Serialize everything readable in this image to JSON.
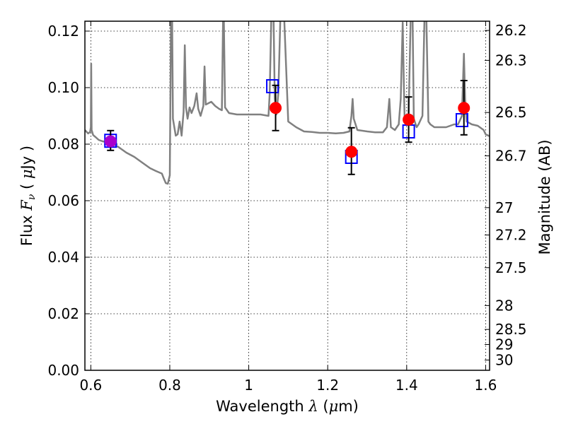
{
  "chart_data": {
    "type": "scatter",
    "x_axis": {
      "label_prefix": "Wavelength  ",
      "label_symbol": "λ",
      "label_unit": " (",
      "label_unit_symbol": "μ",
      "label_unit_end": "m)",
      "range": [
        0.585,
        1.61
      ],
      "ticks": [
        0.6,
        0.8,
        1.0,
        1.2,
        1.4,
        1.6
      ],
      "tick_labels": [
        "0.6",
        "0.8",
        "1",
        "1.2",
        "1.4",
        "1.6"
      ]
    },
    "y_axis": {
      "label_prefix": "Flux  ",
      "label_symbol": "F",
      "label_sub": "ν",
      "label_unit": "  ( ",
      "label_unit_symbol": "μ",
      "label_unit_end": "Jy )",
      "range": [
        0.0,
        0.1235
      ],
      "ticks": [
        0.0,
        0.02,
        0.04,
        0.06,
        0.08,
        0.1,
        0.12
      ],
      "tick_labels": [
        "0.00",
        "0.02",
        "0.04",
        "0.06",
        "0.08",
        "0.10",
        "0.12"
      ]
    },
    "right_axis": {
      "label": "Magnitude (AB)",
      "scale": "AB magnitude (mag = 23.9 - 2.5 log10 flux[μJy])",
      "ticks": [
        26.2,
        26.3,
        26.5,
        26.7,
        27,
        27.2,
        27.5,
        28,
        28.5,
        29,
        30
      ],
      "tick_labels": [
        "26.2",
        "26.3",
        "26.5",
        "26.7",
        "27",
        "27.2",
        "27.5",
        "28",
        "28.5",
        "29",
        "30"
      ]
    },
    "grid": true,
    "model_spectrum": {
      "color": "#808080",
      "points": [
        [
          0.585,
          0.085
        ],
        [
          0.593,
          0.0838
        ],
        [
          0.598,
          0.0843
        ],
        [
          0.6,
          0.086
        ],
        [
          0.601,
          0.1085
        ],
        [
          0.602,
          0.085
        ],
        [
          0.606,
          0.0832
        ],
        [
          0.612,
          0.0825
        ],
        [
          0.62,
          0.0815
        ],
        [
          0.63,
          0.081
        ],
        [
          0.65,
          0.0805
        ],
        [
          0.67,
          0.079
        ],
        [
          0.69,
          0.077
        ],
        [
          0.71,
          0.0755
        ],
        [
          0.73,
          0.0735
        ],
        [
          0.75,
          0.0715
        ],
        [
          0.765,
          0.0705
        ],
        [
          0.78,
          0.0696
        ],
        [
          0.785,
          0.0678
        ],
        [
          0.79,
          0.0662
        ],
        [
          0.795,
          0.066
        ],
        [
          0.8,
          0.069
        ],
        [
          0.803,
          0.124
        ],
        [
          0.806,
          0.124
        ],
        [
          0.808,
          0.089
        ],
        [
          0.815,
          0.083
        ],
        [
          0.82,
          0.0835
        ],
        [
          0.825,
          0.088
        ],
        [
          0.83,
          0.083
        ],
        [
          0.835,
          0.0915
        ],
        [
          0.838,
          0.115
        ],
        [
          0.841,
          0.093
        ],
        [
          0.845,
          0.089
        ],
        [
          0.85,
          0.093
        ],
        [
          0.855,
          0.091
        ],
        [
          0.862,
          0.0935
        ],
        [
          0.868,
          0.098
        ],
        [
          0.872,
          0.0925
        ],
        [
          0.878,
          0.09
        ],
        [
          0.885,
          0.0935
        ],
        [
          0.888,
          0.1075
        ],
        [
          0.891,
          0.094
        ],
        [
          0.898,
          0.0945
        ],
        [
          0.905,
          0.095
        ],
        [
          0.915,
          0.0935
        ],
        [
          0.925,
          0.0925
        ],
        [
          0.932,
          0.092
        ],
        [
          0.935,
          0.124
        ],
        [
          0.937,
          0.124
        ],
        [
          0.94,
          0.093
        ],
        [
          0.945,
          0.092
        ],
        [
          0.95,
          0.091
        ],
        [
          0.97,
          0.0905
        ],
        [
          1.0,
          0.0905
        ],
        [
          1.03,
          0.0905
        ],
        [
          1.05,
          0.09
        ],
        [
          1.053,
          0.098
        ],
        [
          1.057,
          0.124
        ],
        [
          1.063,
          0.124
        ],
        [
          1.066,
          0.096
        ],
        [
          1.07,
          0.0905
        ],
        [
          1.075,
          0.098
        ],
        [
          1.08,
          0.124
        ],
        [
          1.09,
          0.124
        ],
        [
          1.1,
          0.088
        ],
        [
          1.12,
          0.086
        ],
        [
          1.14,
          0.0845
        ],
        [
          1.16,
          0.0843
        ],
        [
          1.18,
          0.084
        ],
        [
          1.2,
          0.084
        ],
        [
          1.22,
          0.0838
        ],
        [
          1.24,
          0.084
        ],
        [
          1.255,
          0.0845
        ],
        [
          1.26,
          0.09
        ],
        [
          1.263,
          0.096
        ],
        [
          1.266,
          0.089
        ],
        [
          1.275,
          0.085
        ],
        [
          1.3,
          0.0845
        ],
        [
          1.32,
          0.0842
        ],
        [
          1.34,
          0.0842
        ],
        [
          1.35,
          0.086
        ],
        [
          1.356,
          0.096
        ],
        [
          1.36,
          0.086
        ],
        [
          1.37,
          0.085
        ],
        [
          1.38,
          0.087
        ],
        [
          1.385,
          0.096
        ],
        [
          1.39,
          0.123
        ],
        [
          1.393,
          0.1
        ],
        [
          1.395,
          0.088
        ],
        [
          1.4,
          0.087
        ],
        [
          1.405,
          0.091
        ],
        [
          1.41,
          0.124
        ],
        [
          1.415,
          0.124
        ],
        [
          1.418,
          0.089
        ],
        [
          1.425,
          0.086
        ],
        [
          1.43,
          0.087
        ],
        [
          1.44,
          0.09
        ],
        [
          1.445,
          0.124
        ],
        [
          1.45,
          0.124
        ],
        [
          1.455,
          0.088
        ],
        [
          1.46,
          0.087
        ],
        [
          1.47,
          0.086
        ],
        [
          1.48,
          0.086
        ],
        [
          1.49,
          0.086
        ],
        [
          1.5,
          0.086
        ],
        [
          1.51,
          0.0865
        ],
        [
          1.52,
          0.087
        ],
        [
          1.53,
          0.087
        ],
        [
          1.54,
          0.09
        ],
        [
          1.545,
          0.112
        ],
        [
          1.548,
          0.096
        ],
        [
          1.552,
          0.088
        ],
        [
          1.565,
          0.087
        ],
        [
          1.58,
          0.0865
        ],
        [
          1.595,
          0.085
        ],
        [
          1.6,
          0.0835
        ],
        [
          1.61,
          0.0828
        ]
      ]
    },
    "model_photometry": {
      "marker": "open square",
      "color": "#0000ff",
      "points": [
        [
          0.65,
          0.0812
        ],
        [
          1.06,
          0.1005
        ],
        [
          1.26,
          0.0755
        ],
        [
          1.405,
          0.0845
        ],
        [
          1.54,
          0.0885
        ]
      ]
    },
    "observed_photometry": {
      "marker": "filled circle",
      "color": "#ff0000",
      "points": [
        {
          "x": 0.65,
          "y": 0.081,
          "err_low": 0.0032,
          "err_high": 0.0038,
          "color": "#aa00cc"
        },
        {
          "x": 1.068,
          "y": 0.0928,
          "err_low": 0.008,
          "err_high": 0.008,
          "color": "#ff0000"
        },
        {
          "x": 1.26,
          "y": 0.0773,
          "err_low": 0.008,
          "err_high": 0.0085,
          "color": "#ff0000"
        },
        {
          "x": 1.405,
          "y": 0.0887,
          "err_low": 0.008,
          "err_high": 0.008,
          "color": "#ff0000"
        },
        {
          "x": 1.545,
          "y": 0.0928,
          "err_low": 0.0095,
          "err_high": 0.0097,
          "color": "#ff0000"
        }
      ]
    }
  }
}
